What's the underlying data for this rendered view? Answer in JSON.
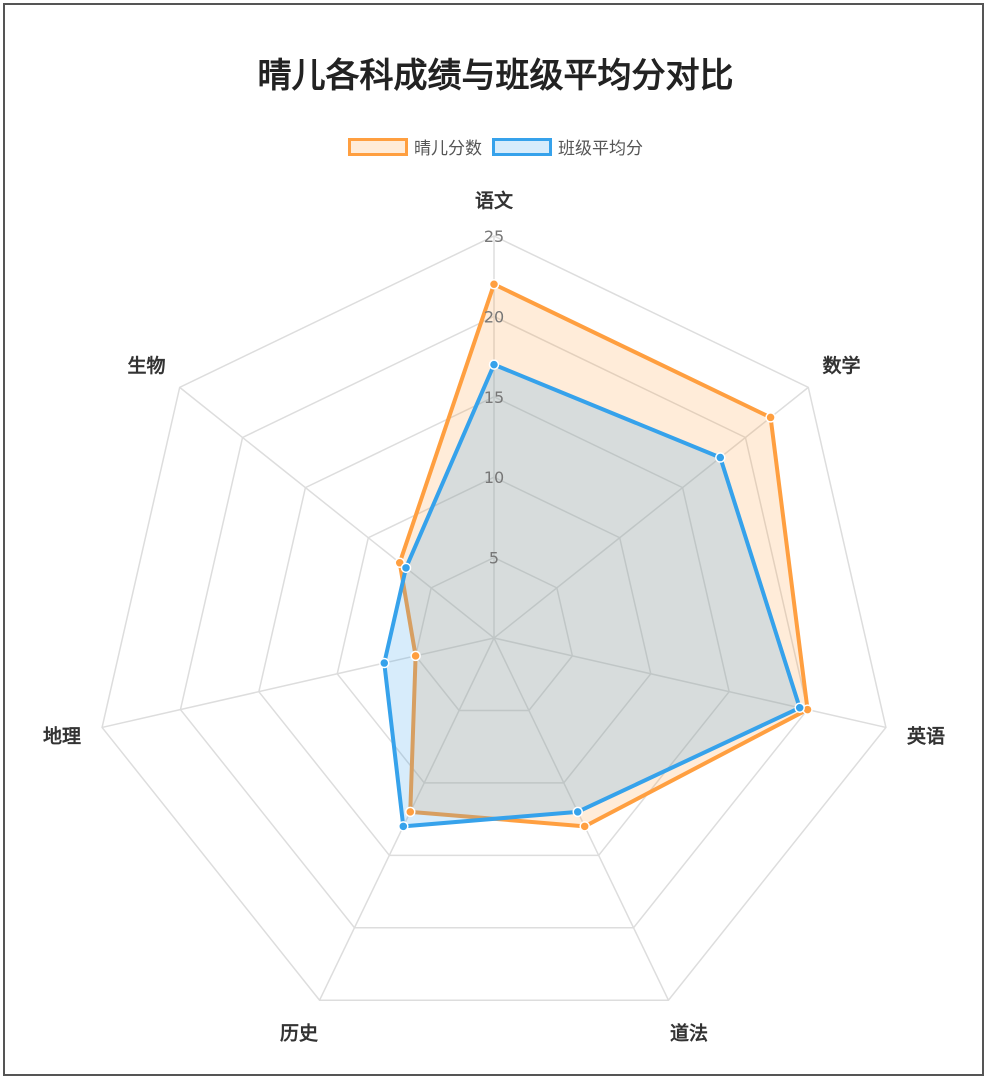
{
  "chart_data": {
    "type": "radar",
    "title": "晴儿各科成绩与班级平均分对比",
    "axes": [
      "语文",
      "数学",
      "英语",
      "道法",
      "历史",
      "地理",
      "生物"
    ],
    "r_ticks": [
      5,
      10,
      15,
      20,
      25
    ],
    "r_range": [
      0,
      25
    ],
    "grid": true,
    "legend_position": "top",
    "series": [
      {
        "name": "晴儿分数",
        "values": [
          22,
          22,
          20,
          13,
          12,
          5,
          7.5
        ],
        "color": "#ff9f40",
        "fill": "rgba(255,159,64,0.2)"
      },
      {
        "name": "班级平均分",
        "values": [
          17,
          18,
          19.5,
          12,
          13,
          7,
          7
        ],
        "color": "#36a2eb",
        "fill": "rgba(54,162,235,0.2)"
      }
    ]
  }
}
